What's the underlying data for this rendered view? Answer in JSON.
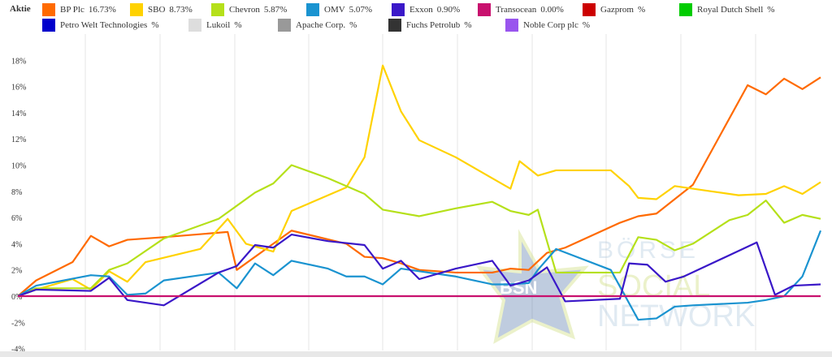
{
  "legend_title": "Aktie",
  "chart_data": {
    "type": "line",
    "title": "",
    "xlabel": "",
    "ylabel": "",
    "ylim": [
      -4,
      19
    ],
    "xlim": [
      0,
      44
    ],
    "yticks": [
      "18%",
      "16%",
      "14%",
      "12%",
      "10%",
      "8%",
      "6%",
      "4%",
      "2%",
      "0%",
      "-2%",
      "-4%"
    ],
    "ytick_values": [
      18,
      16,
      14,
      12,
      10,
      8,
      6,
      4,
      2,
      0,
      -2,
      -4
    ],
    "legend_placement": "top",
    "watermark": "BÖRSE SOCIAL NETWORK BSN",
    "series": [
      {
        "name": "BP Plc",
        "value": "16.73%",
        "color": "#ff6a00",
        "points": [
          [
            0,
            0
          ],
          [
            1,
            1.2
          ],
          [
            3,
            2.6
          ],
          [
            4,
            4.6
          ],
          [
            5,
            3.8
          ],
          [
            6,
            4.3
          ],
          [
            8,
            4.5
          ],
          [
            11.5,
            4.9
          ],
          [
            12,
            2
          ],
          [
            14,
            4
          ],
          [
            15,
            5
          ],
          [
            18,
            4
          ],
          [
            19,
            3
          ],
          [
            20,
            2.9
          ],
          [
            21,
            2.5
          ],
          [
            22,
            2
          ],
          [
            24,
            1.8
          ],
          [
            26,
            1.8
          ],
          [
            27,
            2.1
          ],
          [
            28,
            2
          ],
          [
            29,
            3.3
          ],
          [
            30,
            3.7
          ],
          [
            33,
            5.6
          ],
          [
            34,
            6.1
          ],
          [
            35,
            6.3
          ],
          [
            37,
            8.5
          ],
          [
            40,
            16.1
          ],
          [
            41,
            15.4
          ],
          [
            42,
            16.6
          ],
          [
            43,
            15.8
          ],
          [
            44,
            16.7
          ]
        ]
      },
      {
        "name": "SBO",
        "value": "8.73%",
        "color": "#ffd200",
        "points": [
          [
            0,
            0
          ],
          [
            1,
            0.5
          ],
          [
            3,
            1.3
          ],
          [
            4,
            0.5
          ],
          [
            5,
            1.9
          ],
          [
            6,
            1.1
          ],
          [
            7,
            2.6
          ],
          [
            10,
            3.6
          ],
          [
            11.5,
            5.9
          ],
          [
            12.5,
            4
          ],
          [
            14,
            3.4
          ],
          [
            15,
            6.5
          ],
          [
            18,
            8.3
          ],
          [
            19,
            10.6
          ],
          [
            20,
            17.6
          ],
          [
            21,
            14.1
          ],
          [
            22,
            11.9
          ],
          [
            24,
            10.6
          ],
          [
            26,
            9
          ],
          [
            27,
            8.2
          ],
          [
            27.5,
            10.3
          ],
          [
            28.5,
            9.2
          ],
          [
            29.5,
            9.6
          ],
          [
            32.5,
            9.6
          ],
          [
            33.5,
            8.4
          ],
          [
            34,
            7.5
          ],
          [
            35,
            7.4
          ],
          [
            36,
            8.4
          ],
          [
            38,
            8
          ],
          [
            39.5,
            7.7
          ],
          [
            41,
            7.8
          ],
          [
            42,
            8.4
          ],
          [
            43,
            7.8
          ],
          [
            44,
            8.7
          ]
        ]
      },
      {
        "name": "Chevron",
        "value": "5.87%",
        "color": "#b5e01a",
        "points": [
          [
            0,
            0
          ],
          [
            1,
            0.6
          ],
          [
            4,
            0.6
          ],
          [
            5,
            2
          ],
          [
            6,
            2.5
          ],
          [
            8,
            4.4
          ],
          [
            11,
            5.9
          ],
          [
            12,
            6.9
          ],
          [
            13,
            7.9
          ],
          [
            14,
            8.6
          ],
          [
            15,
            10
          ],
          [
            17,
            9
          ],
          [
            19,
            7.8
          ],
          [
            20,
            6.6
          ],
          [
            22,
            6.1
          ],
          [
            24,
            6.7
          ],
          [
            26,
            7.2
          ],
          [
            27,
            6.5
          ],
          [
            28,
            6.2
          ],
          [
            28.5,
            6.6
          ],
          [
            29.5,
            1.8
          ],
          [
            33,
            1.8
          ],
          [
            34,
            4.5
          ],
          [
            35,
            4.3
          ],
          [
            36,
            3.5
          ],
          [
            37,
            4
          ],
          [
            39,
            5.8
          ],
          [
            40,
            6.2
          ],
          [
            41,
            7.3
          ],
          [
            42,
            5.6
          ],
          [
            43,
            6.2
          ],
          [
            44,
            5.9
          ]
        ]
      },
      {
        "name": "OMV",
        "value": "5.07%",
        "color": "#1a93d0",
        "points": [
          [
            0,
            0
          ],
          [
            1,
            0.8
          ],
          [
            4,
            1.6
          ],
          [
            5,
            1.5
          ],
          [
            6,
            0.1
          ],
          [
            7,
            0.2
          ],
          [
            8,
            1.2
          ],
          [
            11,
            1.8
          ],
          [
            12,
            0.6
          ],
          [
            13,
            2.5
          ],
          [
            14,
            1.6
          ],
          [
            15,
            2.7
          ],
          [
            17,
            2.1
          ],
          [
            18,
            1.5
          ],
          [
            19,
            1.5
          ],
          [
            20,
            0.9
          ],
          [
            21,
            2.1
          ],
          [
            22,
            1.9
          ],
          [
            24,
            1.5
          ],
          [
            26,
            0.9
          ],
          [
            27,
            0.9
          ],
          [
            28,
            1
          ],
          [
            28.5,
            2
          ],
          [
            29.5,
            3.6
          ],
          [
            32.5,
            2
          ],
          [
            34,
            -1.8
          ],
          [
            35,
            -1.7
          ],
          [
            36,
            -0.8
          ],
          [
            37,
            -0.7
          ],
          [
            40,
            -0.5
          ],
          [
            41,
            -0.3
          ],
          [
            42,
            0
          ],
          [
            43,
            1.5
          ],
          [
            44,
            5
          ]
        ]
      },
      {
        "name": "Exxon",
        "value": "0.90%",
        "color": "#3a18c8",
        "points": [
          [
            0,
            0
          ],
          [
            1,
            0.5
          ],
          [
            4,
            0.4
          ],
          [
            5,
            1.4
          ],
          [
            6,
            -0.3
          ],
          [
            8,
            -0.7
          ],
          [
            11,
            1.8
          ],
          [
            12,
            2.3
          ],
          [
            13,
            3.9
          ],
          [
            14,
            3.7
          ],
          [
            15,
            4.7
          ],
          [
            17,
            4.2
          ],
          [
            19,
            3.9
          ],
          [
            20,
            2.1
          ],
          [
            21,
            2.7
          ],
          [
            22,
            1.3
          ],
          [
            24,
            2.1
          ],
          [
            26,
            2.7
          ],
          [
            27,
            0.8
          ],
          [
            28,
            1.2
          ],
          [
            29,
            2.2
          ],
          [
            30,
            -0.4
          ],
          [
            33,
            -0.2
          ],
          [
            33.5,
            2.5
          ],
          [
            34.5,
            2.4
          ],
          [
            35.5,
            1.1
          ],
          [
            36.5,
            1.5
          ],
          [
            40.5,
            4.1
          ],
          [
            41.5,
            0.1
          ],
          [
            42.5,
            0.8
          ],
          [
            44,
            0.9
          ]
        ]
      },
      {
        "name": "Transocean",
        "value": "0.00%",
        "color": "#c8106e",
        "points": [
          [
            0,
            0
          ],
          [
            44,
            0
          ]
        ]
      },
      {
        "name": "Gazprom",
        "value": "%",
        "color": "#cc0000",
        "points": []
      },
      {
        "name": "Royal Dutch Shell",
        "value": "%",
        "color": "#00cc00",
        "points": []
      },
      {
        "name": "Petro Welt Technologies",
        "value": "%",
        "color": "#0000cc",
        "points": []
      },
      {
        "name": "Lukoil",
        "value": "%",
        "color": "#dddddd",
        "points": []
      },
      {
        "name": "Apache Corp.",
        "value": "%",
        "color": "#999999",
        "points": []
      },
      {
        "name": "Fuchs Petrolub",
        "value": "%",
        "color": "#333333",
        "points": []
      },
      {
        "name": "Noble Corp plc",
        "value": "%",
        "color": "#9955ee",
        "points": []
      }
    ]
  }
}
